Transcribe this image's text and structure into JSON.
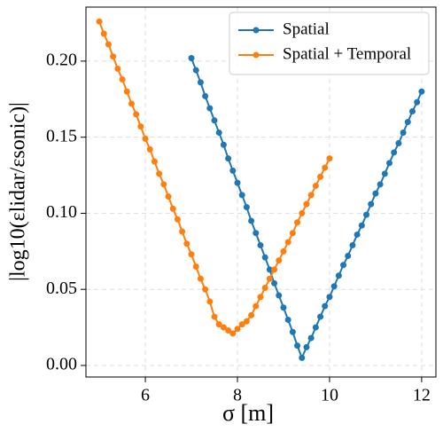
{
  "chart_data": {
    "type": "line",
    "xlabel": "σ [m]",
    "ylabel": "|log10(εlidar/εsonic)|",
    "xlim": [
      4.71,
      12.31
    ],
    "ylim": [
      -0.0076,
      0.2355
    ],
    "xticks": [
      6,
      8,
      10,
      12
    ],
    "yticks": [
      {
        "value": 0,
        "label": "0.00"
      },
      {
        "value": 0.05,
        "label": "0.05"
      },
      {
        "value": 0.1,
        "label": "0.10"
      },
      {
        "value": 0.15,
        "label": "0.15"
      },
      {
        "value": 0.2,
        "label": "0.20"
      }
    ],
    "grid": true,
    "legend": "upper right",
    "series": [
      {
        "name": "Spatial",
        "color": "#1f77b4",
        "x": [
          7.0,
          7.1,
          7.2,
          7.3,
          7.4,
          7.5,
          7.6,
          7.7,
          7.8,
          7.9,
          8.0,
          8.1,
          8.2,
          8.3,
          8.4,
          8.5,
          8.6,
          8.7,
          8.8,
          8.9,
          9.0,
          9.1,
          9.2,
          9.3,
          9.4,
          9.5,
          9.6,
          9.7,
          9.8,
          9.9,
          10.0,
          10.1,
          10.2,
          10.3,
          10.4,
          10.5,
          10.6,
          10.7,
          10.8,
          10.9,
          11.0,
          11.1,
          11.2,
          11.3,
          11.4,
          11.5,
          11.6,
          11.7,
          11.8,
          11.9,
          12.0
        ],
        "values": [
          0.202,
          0.194,
          0.186,
          0.177,
          0.169,
          0.161,
          0.153,
          0.145,
          0.136,
          0.128,
          0.12,
          0.112,
          0.104,
          0.095,
          0.087,
          0.079,
          0.071,
          0.063,
          0.054,
          0.046,
          0.038,
          0.03,
          0.022,
          0.013,
          0.005,
          0.012,
          0.018,
          0.025,
          0.032,
          0.039,
          0.045,
          0.052,
          0.059,
          0.066,
          0.072,
          0.079,
          0.086,
          0.092,
          0.099,
          0.106,
          0.113,
          0.119,
          0.126,
          0.133,
          0.14,
          0.146,
          0.153,
          0.16,
          0.167,
          0.173,
          0.18
        ]
      },
      {
        "name": "Spatial + Temporal",
        "color": "#ff7f0e",
        "x": [
          5.0,
          5.1,
          5.2,
          5.3,
          5.4,
          5.5,
          5.6,
          5.7,
          5.8,
          5.9,
          6.0,
          6.1,
          6.2,
          6.3,
          6.4,
          6.5,
          6.6,
          6.7,
          6.8,
          6.9,
          7.0,
          7.1,
          7.2,
          7.3,
          7.4,
          7.5,
          7.6,
          7.7,
          7.8,
          7.9,
          8.0,
          8.1,
          8.2,
          8.3,
          8.4,
          8.5,
          8.6,
          8.7,
          8.8,
          8.9,
          9.0,
          9.1,
          9.2,
          9.3,
          9.4,
          9.5,
          9.6,
          9.7,
          9.8,
          9.9,
          10.0
        ],
        "values": [
          0.226,
          0.218,
          0.211,
          0.203,
          0.195,
          0.188,
          0.18,
          0.172,
          0.165,
          0.157,
          0.149,
          0.142,
          0.134,
          0.126,
          0.119,
          0.111,
          0.103,
          0.096,
          0.088,
          0.08,
          0.073,
          0.065,
          0.057,
          0.05,
          0.042,
          0.032,
          0.027,
          0.025,
          0.023,
          0.021,
          0.024,
          0.027,
          0.029,
          0.033,
          0.039,
          0.045,
          0.051,
          0.057,
          0.063,
          0.069,
          0.075,
          0.081,
          0.087,
          0.094,
          0.1,
          0.106,
          0.112,
          0.118,
          0.124,
          0.13,
          0.136
        ]
      }
    ]
  }
}
